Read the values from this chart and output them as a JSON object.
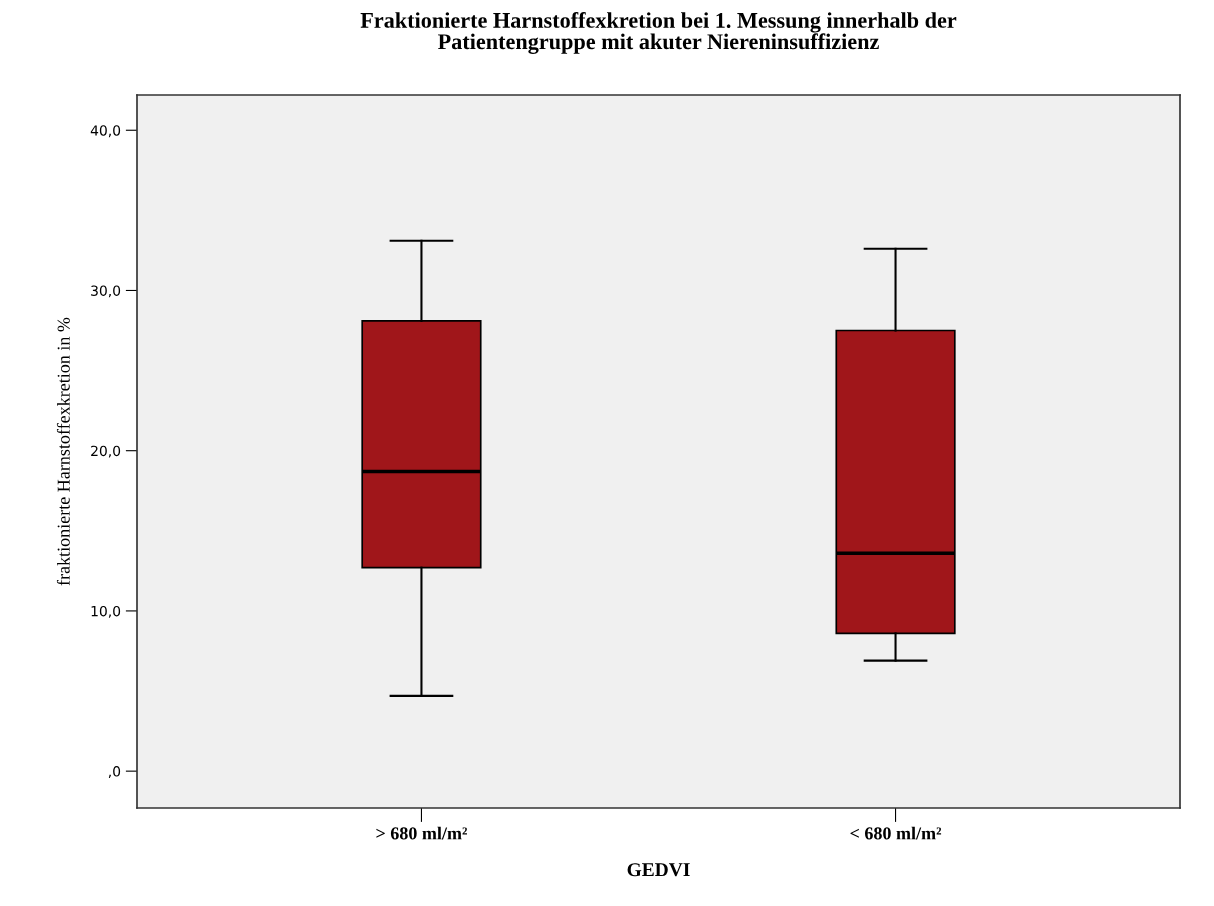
{
  "chart_data": {
    "type": "box",
    "title": "Fraktionierte Harnstoffexkretion bei 1. Messung innerhalb der\nPatientengruppe mit akuter Niereninsuffizienz",
    "xlabel": "GEDVI",
    "ylabel": "fraktionierte Harnstoffexkretion in %",
    "categories": [
      "> 680 ml/m²",
      "< 680 ml/m²"
    ],
    "boxes": [
      {
        "low": 4.7,
        "q1": 12.7,
        "median": 18.7,
        "q3": 28.1,
        "high": 33.1
      },
      {
        "low": 6.9,
        "q1": 8.6,
        "median": 13.6,
        "q3": 27.5,
        "high": 32.6
      }
    ],
    "color": "#a0161a",
    "ylim": [
      -2.3,
      42.2
    ],
    "yticks": [
      {
        "value": 0,
        "label": ",0"
      },
      {
        "value": 10,
        "label": "10,0"
      },
      {
        "value": 20,
        "label": "20,0"
      },
      {
        "value": 30,
        "label": "30,0"
      },
      {
        "value": 40,
        "label": "40,0"
      }
    ],
    "grid": false
  }
}
